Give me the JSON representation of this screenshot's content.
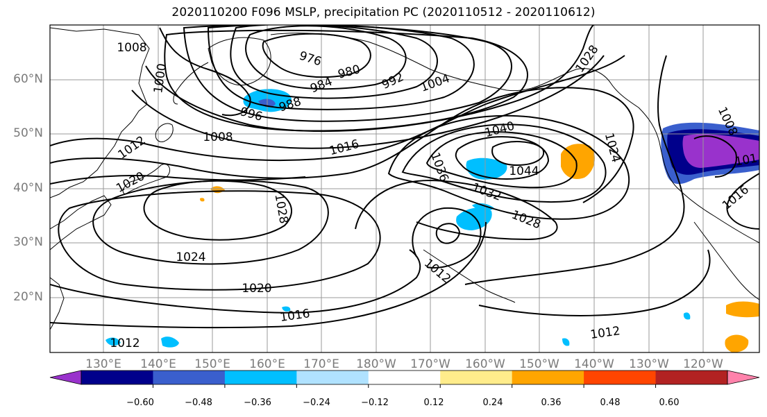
{
  "title": "2020110200 F096 MSLP, precipitation PC (2020110512 - 2020110612)",
  "lat_labels": [
    "60°N",
    "50°N",
    "40°N",
    "30°N",
    "20°N"
  ],
  "lon_labels": [
    "130°E",
    "140°E",
    "150°E",
    "160°E",
    "170°E",
    "180°W",
    "170°W",
    "160°W",
    "150°W",
    "140°W",
    "130°W",
    "120°W"
  ],
  "isobar_labels": [
    "1008",
    "976",
    "980",
    "984",
    "988",
    "992",
    "996",
    "1000",
    "1004",
    "1008",
    "1012",
    "1016",
    "1020",
    "1024",
    "1028",
    "1028",
    "1036",
    "1040",
    "1044",
    "1032",
    "1028",
    "1012",
    "1020",
    "1016",
    "1012",
    "1012",
    "1024",
    "1008",
    "1016",
    "101"
  ],
  "colorbar": {
    "colors": [
      "#9932cc",
      "#00008b",
      "#3a5fcd",
      "#00bfff",
      "#b0e2ff",
      "#ffffff",
      "#ffec8b",
      "#ffa500",
      "#ff4500",
      "#b22222",
      "#ff82ab"
    ],
    "labels": [
      "−0.60",
      "−0.48",
      "−0.36",
      "−0.24",
      "−0.12",
      "0.12",
      "0.24",
      "0.36",
      "0.48",
      "0.60"
    ]
  }
}
